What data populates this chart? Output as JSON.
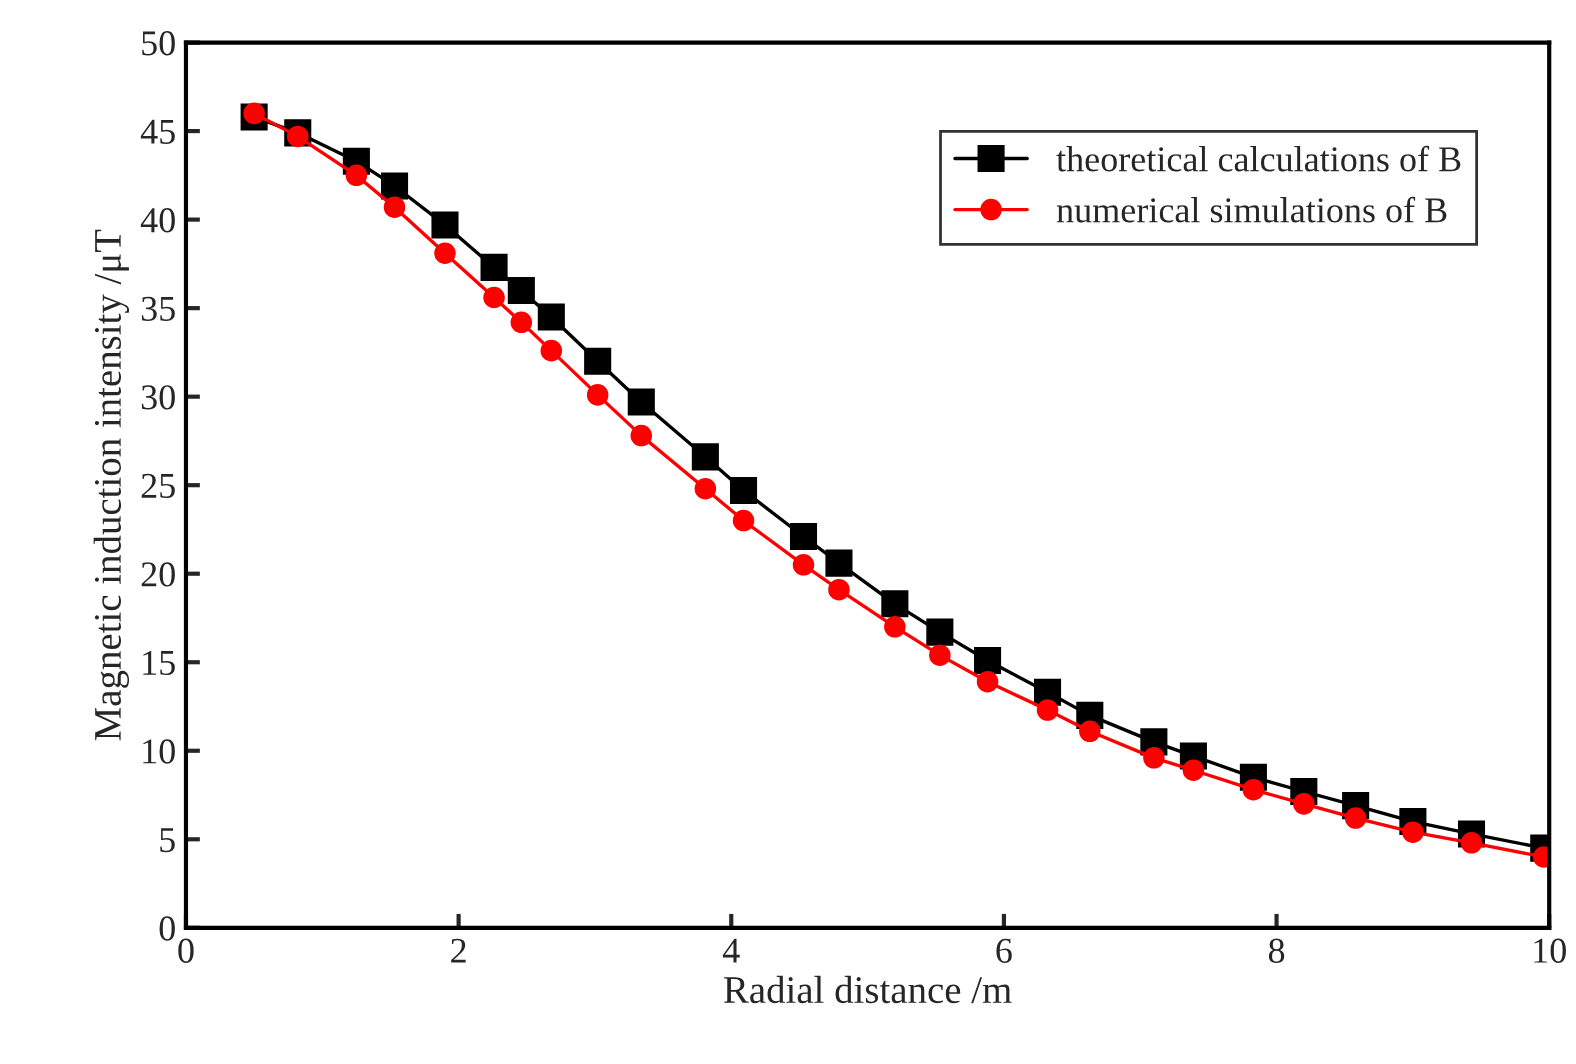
{
  "chart_data": {
    "type": "line",
    "xlabel": "Radial distance /m",
    "ylabel": "Magnetic induction intensity /μT",
    "x": [
      0.5,
      0.82,
      1.25,
      1.53,
      1.9,
      2.26,
      2.46,
      2.68,
      3.02,
      3.34,
      3.81,
      4.09,
      4.53,
      4.79,
      5.2,
      5.53,
      5.88,
      6.32,
      6.63,
      7.1,
      7.39,
      7.83,
      8.2,
      8.58,
      9.0,
      9.43,
      9.96
    ],
    "series": [
      {
        "name": "theoretical calculations of B",
        "color": "#000000",
        "marker": "square",
        "values": [
          45.8,
          44.9,
          43.3,
          41.9,
          39.7,
          37.3,
          36.0,
          34.5,
          32.0,
          29.7,
          26.6,
          24.7,
          22.1,
          20.6,
          18.3,
          16.7,
          15.1,
          13.3,
          12.0,
          10.5,
          9.7,
          8.5,
          7.7,
          6.9,
          6.0,
          5.3,
          4.5
        ]
      },
      {
        "name": "numerical simulations of B",
        "color": "#ff0000",
        "marker": "circle",
        "values": [
          46.0,
          44.7,
          42.5,
          40.7,
          38.1,
          35.6,
          34.2,
          32.6,
          30.1,
          27.8,
          24.8,
          23.0,
          20.5,
          19.1,
          17.0,
          15.4,
          13.9,
          12.3,
          11.1,
          9.6,
          8.9,
          7.8,
          7.0,
          6.2,
          5.4,
          4.8,
          4.0
        ]
      }
    ],
    "xlim": [
      0,
      10
    ],
    "xticks": [
      0,
      2,
      4,
      6,
      8,
      10
    ],
    "ylim": [
      0,
      50
    ],
    "yticks": [
      0,
      5,
      10,
      15,
      20,
      25,
      30,
      35,
      40,
      45,
      50
    ],
    "grid": false,
    "legend": "top right",
    "line_style": "solid"
  }
}
